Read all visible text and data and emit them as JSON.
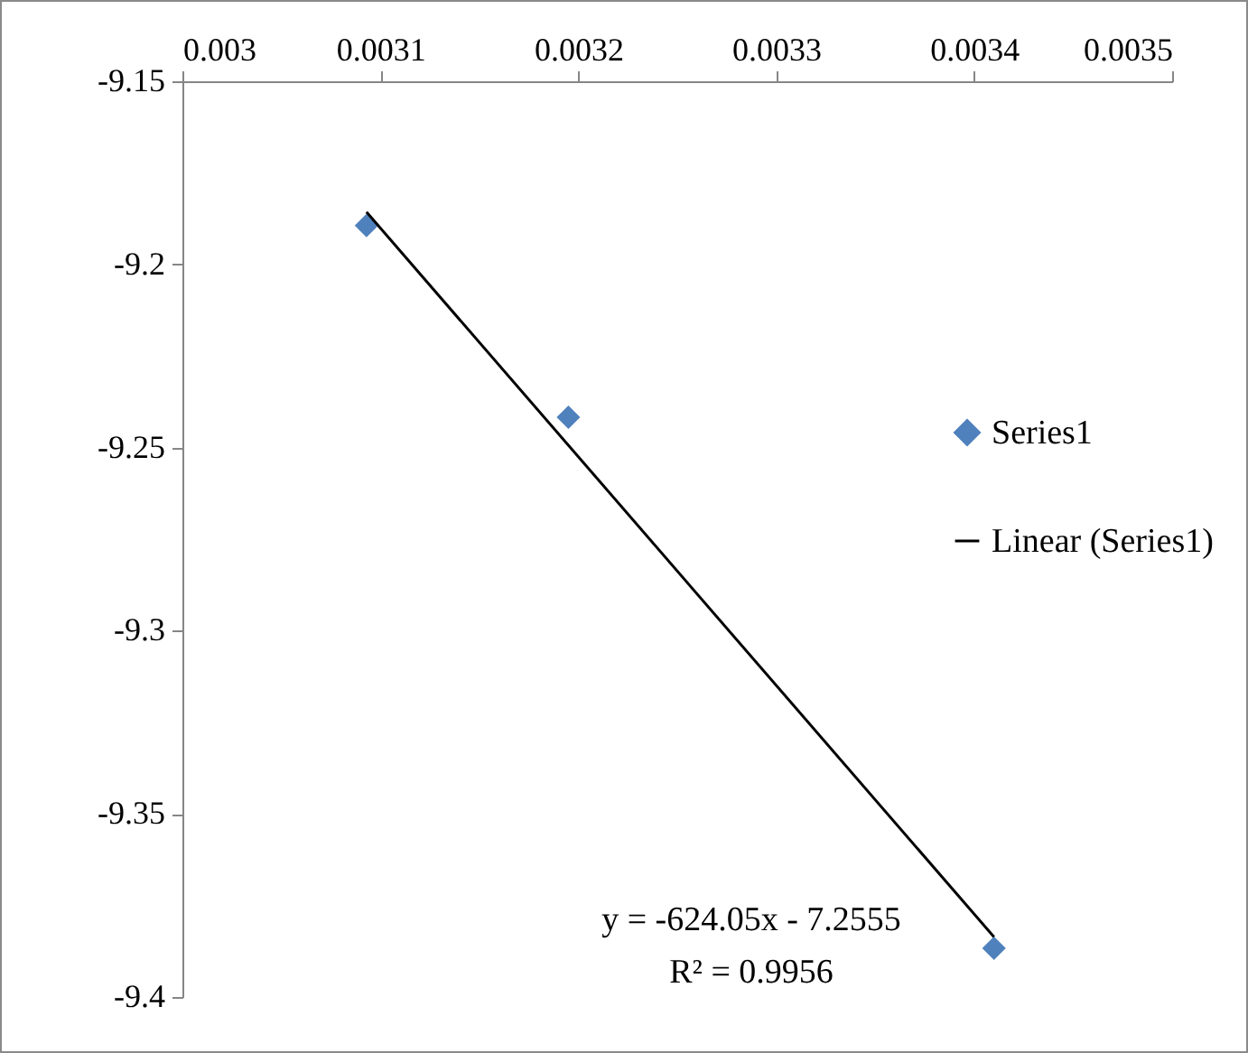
{
  "chart_data": {
    "type": "scatter",
    "xlim": [
      0.003,
      0.0035
    ],
    "xticks": [
      0.003,
      0.0031,
      0.0032,
      0.0033,
      0.0034,
      0.0035
    ],
    "ylim": [
      -9.4,
      -9.15
    ],
    "yticks": [
      -9.4,
      -9.35,
      -9.3,
      -9.25,
      -9.2,
      -9.15
    ],
    "grid": false,
    "legend": "right",
    "series": [
      {
        "name": "Series1",
        "marker": "diamond",
        "color": "#4f81bd",
        "x": [
          0.003093,
          0.003195,
          0.00341
        ],
        "values": [
          -9.1894,
          -9.2417,
          -9.3867
        ]
      },
      {
        "name": "Linear (Series1)",
        "type": "line",
        "marker": "none",
        "line_style": "solid",
        "color": "#000000",
        "x": [
          0.003093,
          0.00341
        ],
        "values": [
          -9.1857,
          -9.3836
        ]
      }
    ],
    "annotations": [
      "y = -624.05x - 7.2555",
      "R² = 0.9956"
    ]
  }
}
